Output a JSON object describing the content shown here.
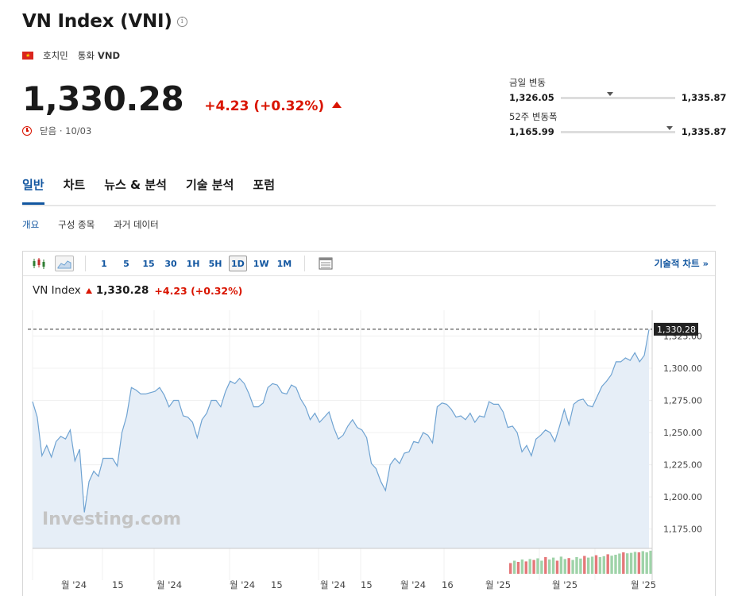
{
  "header": {
    "title": "VN Index (VNI)",
    "exchange": "호치민",
    "currency_label": "통화",
    "currency": "VND",
    "price": "1,330.28",
    "change": "+4.23 (+0.32%)",
    "status": "닫음 · 10/03"
  },
  "daily_range": {
    "label": "금일 변동",
    "low": "1,326.05",
    "high": "1,335.87",
    "position": 0.43
  },
  "week52_range": {
    "label": "52주 변동폭",
    "low": "1,165.99",
    "high": "1,335.87",
    "position": 0.95
  },
  "tabs": [
    {
      "label": "일반",
      "active": true
    },
    {
      "label": "차트",
      "active": false
    },
    {
      "label": "뉴스 & 분석",
      "active": false
    },
    {
      "label": "기술 분석",
      "active": false
    },
    {
      "label": "포럼",
      "active": false
    }
  ],
  "subtabs": [
    {
      "label": "개요",
      "active": true
    },
    {
      "label": "구성 종목",
      "active": false
    },
    {
      "label": "과거 데이터",
      "active": false
    }
  ],
  "toolbar": {
    "timeframes": [
      "1",
      "5",
      "15",
      "30",
      "1H",
      "5H",
      "1D",
      "1W",
      "1M"
    ],
    "active_timeframe": "1D",
    "tech_chart_link": "기술적 차트 »"
  },
  "legend": {
    "name": "VN Index",
    "price": "1,330.28",
    "change": "+4.23 (+0.32%)"
  },
  "watermark": "Investing.com",
  "colors": {
    "accent": "#1256a0",
    "negative_change_red": "#d91400",
    "line": "#6fa3d2",
    "area": "#e6eef7",
    "vol_up": "#9fd3a9",
    "vol_down": "#e5787a"
  },
  "chart_data": {
    "type": "area",
    "title": "",
    "y_ticks": [
      "1,175.00",
      "1,200.00",
      "1,225.00",
      "1,250.00",
      "1,275.00",
      "1,300.00",
      "1,325.00"
    ],
    "x_tick_labels": [
      "월 '24",
      "15",
      "월 '24",
      "월 '24",
      "15",
      "월 '24",
      "15",
      "월 '24",
      "16",
      "월 '25",
      "월 '25",
      "월 '25"
    ],
    "ylim": [
      1160,
      1345
    ],
    "last_price_label": "1,330.28",
    "values": [
      1274,
      1262,
      1232,
      1240,
      1231,
      1243,
      1247,
      1245,
      1252,
      1228,
      1237,
      1188,
      1212,
      1220,
      1216,
      1230,
      1230,
      1230,
      1224,
      1250,
      1263,
      1285,
      1283,
      1280,
      1280,
      1281,
      1282,
      1285,
      1279,
      1270,
      1275,
      1275,
      1263,
      1262,
      1258,
      1246,
      1260,
      1265,
      1275,
      1275,
      1270,
      1282,
      1290,
      1288,
      1292,
      1288,
      1280,
      1270,
      1270,
      1273,
      1285,
      1288,
      1287,
      1281,
      1280,
      1287,
      1285,
      1276,
      1270,
      1260,
      1265,
      1258,
      1262,
      1266,
      1254,
      1245,
      1248,
      1255,
      1260,
      1254,
      1252,
      1246,
      1226,
      1222,
      1212,
      1205,
      1225,
      1230,
      1226,
      1234,
      1235,
      1243,
      1242,
      1250,
      1248,
      1242,
      1270,
      1273,
      1272,
      1268,
      1262,
      1263,
      1260,
      1265,
      1258,
      1263,
      1262,
      1274,
      1272,
      1272,
      1266,
      1254,
      1255,
      1250,
      1235,
      1240,
      1232,
      1245,
      1248,
      1252,
      1250,
      1243,
      1255,
      1268,
      1256,
      1272,
      1275,
      1276,
      1271,
      1270,
      1278,
      1286,
      1290,
      1295,
      1305,
      1305,
      1308,
      1306,
      1312,
      1305,
      1310,
      1330
    ],
    "volume": [
      {
        "v": 0.45,
        "up": false
      },
      {
        "v": 0.55,
        "up": true
      },
      {
        "v": 0.5,
        "up": false
      },
      {
        "v": 0.6,
        "up": true
      },
      {
        "v": 0.52,
        "up": false
      },
      {
        "v": 0.62,
        "up": true
      },
      {
        "v": 0.58,
        "up": false
      },
      {
        "v": 0.65,
        "up": true
      },
      {
        "v": 0.55,
        "up": true
      },
      {
        "v": 0.7,
        "up": false
      },
      {
        "v": 0.6,
        "up": true
      },
      {
        "v": 0.68,
        "up": true
      },
      {
        "v": 0.55,
        "up": false
      },
      {
        "v": 0.72,
        "up": true
      },
      {
        "v": 0.62,
        "up": true
      },
      {
        "v": 0.66,
        "up": false
      },
      {
        "v": 0.58,
        "up": true
      },
      {
        "v": 0.7,
        "up": true
      },
      {
        "v": 0.64,
        "up": true
      },
      {
        "v": 0.75,
        "up": false
      },
      {
        "v": 0.68,
        "up": true
      },
      {
        "v": 0.72,
        "up": true
      },
      {
        "v": 0.78,
        "up": false
      },
      {
        "v": 0.7,
        "up": true
      },
      {
        "v": 0.74,
        "up": true
      },
      {
        "v": 0.82,
        "up": false
      },
      {
        "v": 0.76,
        "up": true
      },
      {
        "v": 0.8,
        "up": true
      },
      {
        "v": 0.85,
        "up": true
      },
      {
        "v": 0.9,
        "up": false
      },
      {
        "v": 0.86,
        "up": true
      },
      {
        "v": 0.88,
        "up": true
      },
      {
        "v": 0.92,
        "up": true
      },
      {
        "v": 0.9,
        "up": false
      },
      {
        "v": 0.95,
        "up": true
      },
      {
        "v": 0.9,
        "up": true
      },
      {
        "v": 0.97,
        "up": true
      }
    ]
  }
}
